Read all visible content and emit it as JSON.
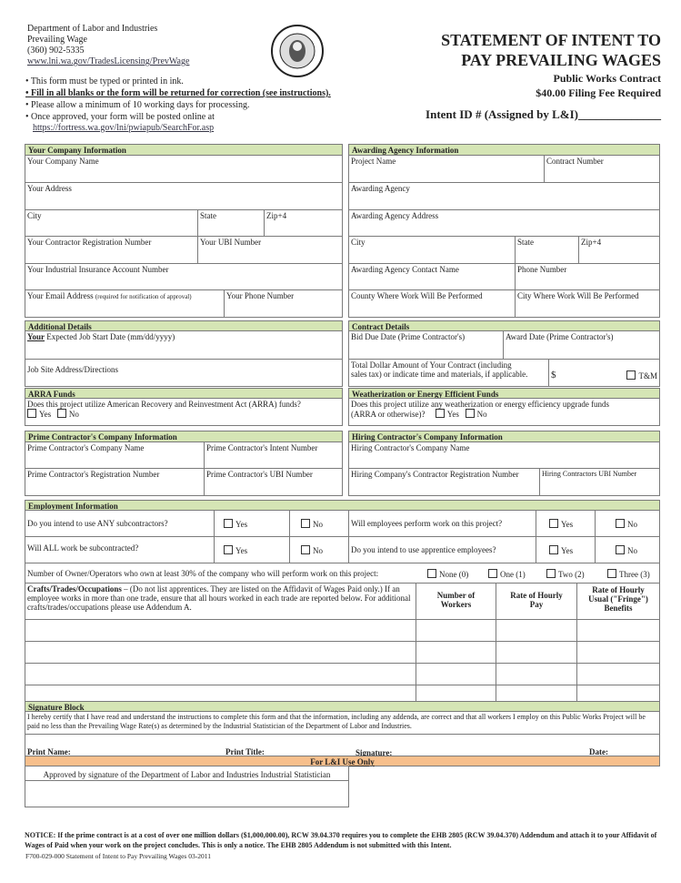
{
  "header": {
    "dept": "Department of Labor and Industries",
    "unit": "Prevailing Wage",
    "phone": "(360) 902-5335",
    "url": "www.lni.wa.gov/TradesLicensing/PrevWage",
    "title1": "STATEMENT OF INTENT TO",
    "title2": "PAY PREVAILING WAGES",
    "subtitle1": "Public Works Contract",
    "subtitle2": "$40.00 Filing Fee Required",
    "intent_id": "Intent ID # (Assigned by L&I)______________",
    "seal": "THE SEAL OF THE STATE OF WASHINGTON 1889",
    "bullets": [
      "• This form must be typed or printed in ink.",
      "• Fill in all blanks or the form will be returned for correction (see instructions).",
      "• Please allow a minimum of 10 working days for processing.",
      "• Once approved, your form will be posted online at"
    ],
    "posted_url": "https://fortress.wa.gov/lni/pwiapub/SearchFor.asp"
  },
  "company": {
    "header": "Your Company Information",
    "name": "Your Company Name",
    "address": "Your Address",
    "city": "City",
    "state": "State",
    "zip": "Zip+4",
    "reg": "Your Contractor Registration Number",
    "ubi": "Your UBI Number",
    "insurance": "Your Industrial Insurance Account Number",
    "email": "Your Email Address",
    "email_note": "(required for notification of approval)",
    "phone": "Your Phone Number"
  },
  "agency": {
    "header": "Awarding Agency Information",
    "project": "Project Name",
    "contract": "Contract Number",
    "agency": "Awarding Agency",
    "address": "Awarding Agency Address",
    "city": "City",
    "state": "State",
    "zip": "Zip+4",
    "contact": "Awarding Agency Contact Name",
    "phone": "Phone Number",
    "county": "County Where Work Will Be Performed",
    "city_work": "City Where Work Will Be Performed"
  },
  "additional": {
    "header": "Additional Details",
    "your": "Your",
    "start": " Expected Job Start Date (mm/dd/yyyy)",
    "site": "Job Site Address/Directions"
  },
  "contract": {
    "header": "Contract Details",
    "bid": "Bid Due Date (Prime Contractor's)",
    "award": "Award Date (Prime Contractor's)",
    "total1": "Total Dollar Amount of Your Contract (including",
    "total2": "sales tax) or indicate time and materials, if applicable.",
    "dollar": "$",
    "tm": "T&M"
  },
  "arra": {
    "header": "ARRA Funds",
    "q": "Does this project utilize American Recovery and Reinvestment Act (ARRA) funds?",
    "yes": "Yes",
    "no": "No"
  },
  "weather": {
    "header": "Weatherization or Energy Efficient Funds",
    "q1": "Does this project utilize any weatherization or energy efficiency upgrade funds",
    "q2": "(ARRA or otherwise)?",
    "yes": "Yes",
    "no": "No"
  },
  "prime": {
    "header": "Prime Contractor's Company Information",
    "name": "Prime Contractor's Company Name",
    "intent": "Prime Contractor's Intent Number",
    "reg": "Prime Contractor's Registration Number",
    "ubi": "Prime Contractor's UBI Number"
  },
  "hiring": {
    "header": "Hiring Contractor's Company Information",
    "name": "Hiring Contractor's Company Name",
    "reg": "Hiring Company's Contractor Registration Number",
    "ubi": "Hiring Contractors UBI Number"
  },
  "employment": {
    "header": "Employment Information",
    "q1": "Do you intend to use ANY subcontractors?",
    "q2": "Will ALL work be subcontracted?",
    "q3": "Will employees perform work on this project?",
    "q4": "Do you intend to use apprentice employees?",
    "yes": "Yes",
    "no": "No",
    "owners": "Number of Owner/Operators who own at least 30% of the company who will perform work on this project:",
    "owner_opts": [
      "None (0)",
      "One (1)",
      "Two (2)",
      "Three (3)"
    ],
    "crafts_title": "Crafts/Trades/Occupations",
    "crafts_text": " – (Do not list apprentices. They are listed on the Affidavit of Wages Paid only.) If an employee works in more than one trade, ensure that all hours worked in each trade are reported below. For additional crafts/trades/occupations please use Addendum A.",
    "col_workers": "Number of Workers",
    "col_pay": "Rate of Hourly Pay",
    "col_fringe": "Rate of Hourly Usual (\"Fringe\") Benefits"
  },
  "signature": {
    "header": "Signature Block",
    "certify": "I hereby certify that I have read and understand the instructions to complete this form and that the information, including any addenda, are correct and that all workers I employ on this Public Works Project will be paid no less than the Prevailing Wage Rate(s) as determined by the Industrial Statistician of the Department of Labor and Industries.",
    "name": "Print Name:",
    "title": "Print Title:",
    "sig": "Signature:",
    "date": "Date:"
  },
  "lni": {
    "header": "For L&I Use Only",
    "approved": "Approved by signature of the Department of Labor and Industries Industrial Statistician"
  },
  "footer": {
    "notice": "NOTICE: If the prime contract is at a cost of over one million dollars ($1,000,000.00), RCW 39.04.370 requires you to complete the EHB 2805 (RCW 39.04.370) Addendum and attach it to your Affidavit of Wages of Paid when your work on the project concludes. This is only a notice. The EHB 2805 Addendum is not submitted with this Intent.",
    "form_id": "F700-029-000 Statement of Intent to Pay Prevailing Wages 03-2011"
  },
  "colors": {
    "section_header": "#d5e5b5",
    "lni_header": "#f7bf8c"
  }
}
